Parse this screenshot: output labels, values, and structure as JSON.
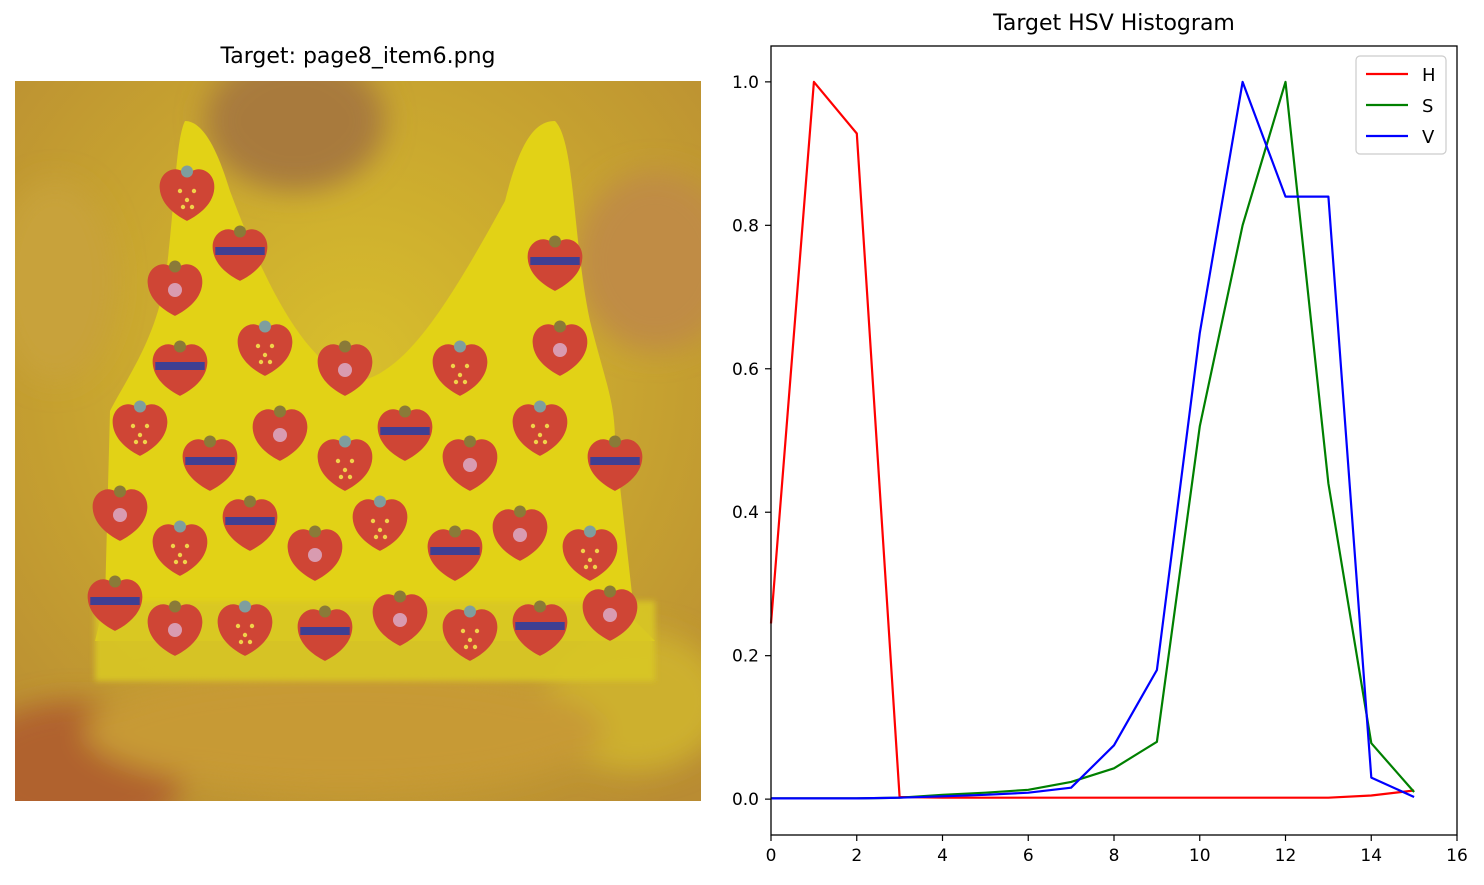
{
  "image_panel": {
    "title": "Target: page8_item6.png",
    "image_description_icon": "strawberry-print-yellow-tank-top"
  },
  "chart_data": {
    "type": "line",
    "title": "Target HSV Histogram",
    "xlabel": "",
    "ylabel": "",
    "xlim": [
      0,
      16
    ],
    "ylim": [
      -0.05,
      1.05
    ],
    "xticks": [
      "0",
      "2",
      "4",
      "6",
      "8",
      "10",
      "12",
      "14",
      "16"
    ],
    "yticks": [
      "0.0",
      "0.2",
      "0.4",
      "0.6",
      "0.8",
      "1.0"
    ],
    "x": [
      0,
      1,
      2,
      3,
      4,
      5,
      6,
      7,
      8,
      9,
      10,
      11,
      12,
      13,
      14,
      15
    ],
    "legend_position": "top-right",
    "grid": false,
    "series": [
      {
        "name": "H",
        "color": "#ff0000",
        "values": [
          0.245,
          1.0,
          0.928,
          0.003,
          0.002,
          0.002,
          0.002,
          0.002,
          0.002,
          0.002,
          0.002,
          0.002,
          0.002,
          0.002,
          0.005,
          0.012
        ]
      },
      {
        "name": "S",
        "color": "#008000",
        "values": [
          0.001,
          0.001,
          0.001,
          0.002,
          0.006,
          0.009,
          0.013,
          0.024,
          0.043,
          0.08,
          0.52,
          0.8,
          1.0,
          0.44,
          0.078,
          0.01
        ]
      },
      {
        "name": "V",
        "color": "#0000ff",
        "values": [
          0.001,
          0.001,
          0.001,
          0.002,
          0.004,
          0.006,
          0.009,
          0.016,
          0.075,
          0.18,
          0.65,
          1.0,
          0.84,
          0.84,
          0.03,
          0.003
        ]
      }
    ]
  }
}
